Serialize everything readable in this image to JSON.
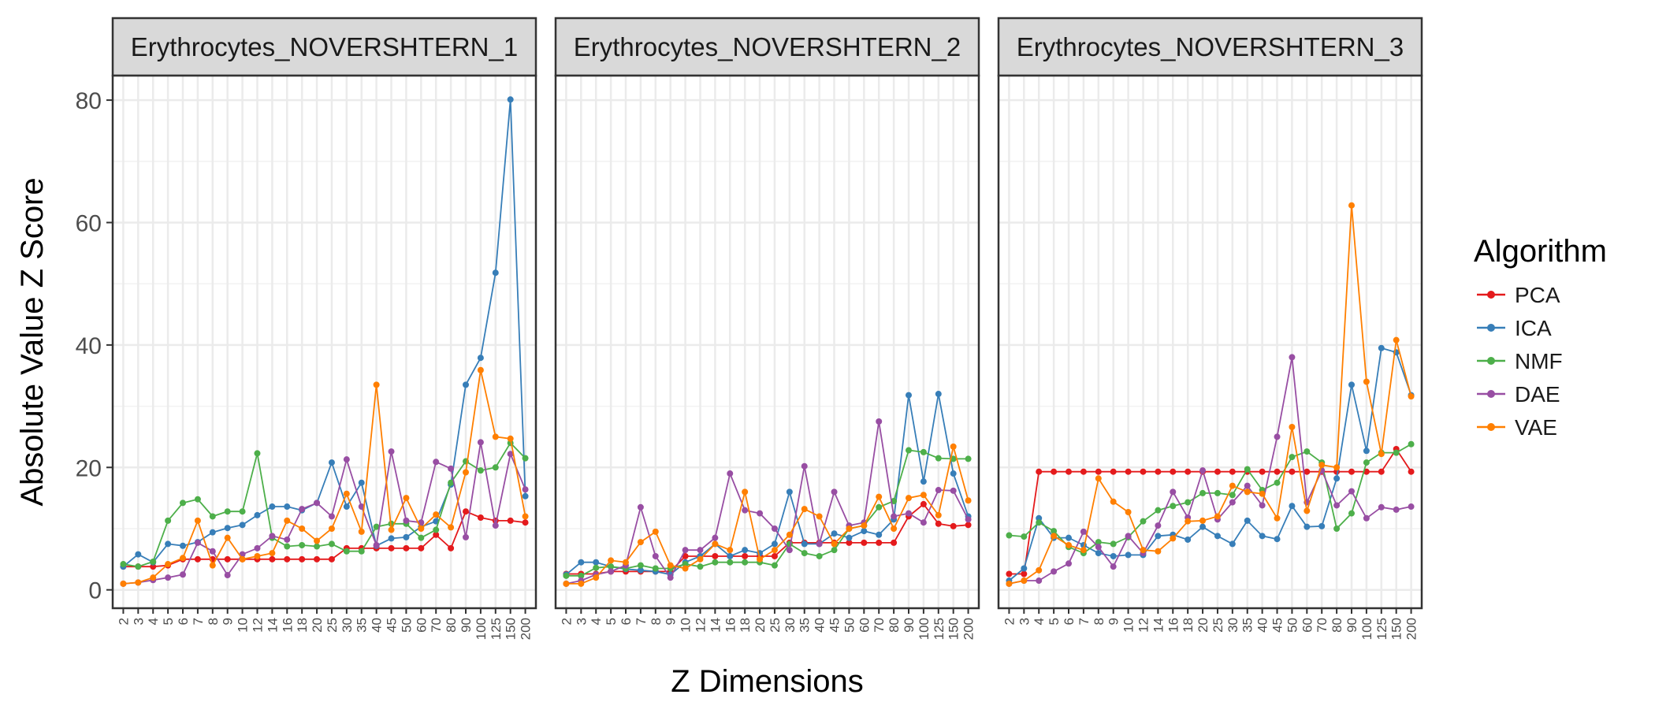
{
  "chart_data": {
    "type": "line",
    "ylabel": "Absolute Value Z Score",
    "xlabel": "Z Dimensions",
    "x": [
      "2",
      "3",
      "4",
      "5",
      "6",
      "7",
      "8",
      "9",
      "10",
      "12",
      "14",
      "16",
      "18",
      "20",
      "25",
      "30",
      "35",
      "40",
      "45",
      "50",
      "60",
      "70",
      "80",
      "90",
      "100",
      "125",
      "150",
      "200"
    ],
    "ylim": [
      -3,
      84
    ],
    "yticks": [
      0,
      20,
      40,
      60,
      80
    ],
    "grid": true,
    "legend_title": "Algorithm",
    "legend_position": "right",
    "series_colors": {
      "PCA": "#e41a1c",
      "ICA": "#377eb8",
      "NMF": "#4daf4a",
      "DAE": "#984ea3",
      "VAE": "#ff7f00"
    },
    "panels": [
      {
        "title": "Erythrocytes_NOVERSHTERN_1",
        "series": [
          {
            "name": "PCA",
            "values": [
              3.8,
              3.8,
              3.8,
              4.0,
              5.0,
              5.0,
              5.0,
              5.0,
              5.0,
              5.0,
              5.0,
              5.0,
              5.0,
              5.0,
              5.0,
              6.8,
              6.8,
              6.8,
              6.8,
              6.8,
              6.8,
              9.0,
              6.8,
              12.8,
              11.8,
              11.3,
              11.3,
              11.0
            ]
          },
          {
            "name": "ICA",
            "values": [
              3.8,
              5.8,
              4.5,
              7.5,
              7.2,
              7.8,
              9.4,
              10.1,
              10.6,
              12.2,
              13.6,
              13.6,
              13.0,
              14.2,
              20.8,
              13.6,
              17.5,
              7.2,
              8.4,
              8.6,
              10.3,
              11.2,
              17.2,
              33.5,
              37.9,
              51.8,
              80.1,
              15.3
            ]
          },
          {
            "name": "NMF",
            "values": [
              4.2,
              3.8,
              4.6,
              11.3,
              14.2,
              14.8,
              12.0,
              12.8,
              12.8,
              22.3,
              8.5,
              7.1,
              7.3,
              7.1,
              7.5,
              6.3,
              6.3,
              10.3,
              10.8,
              10.8,
              8.5,
              9.8,
              17.5,
              21.0,
              19.5,
              20.0,
              24.0,
              21.5
            ]
          },
          {
            "name": "DAE",
            "values": [
              1.0,
              1.2,
              1.6,
              2.0,
              2.5,
              7.7,
              6.3,
              2.4,
              5.8,
              6.8,
              8.8,
              8.2,
              13.2,
              14.2,
              12.0,
              21.3,
              13.6,
              7.3,
              22.6,
              11.3,
              11.0,
              20.9,
              19.8,
              8.6,
              24.1,
              10.5,
              22.2,
              16.4
            ]
          },
          {
            "name": "VAE",
            "values": [
              1.0,
              1.2,
              2.0,
              4.2,
              5.2,
              11.3,
              4.0,
              8.5,
              5.0,
              5.5,
              6.0,
              11.3,
              10.0,
              8.0,
              10.0,
              15.7,
              9.5,
              33.5,
              9.8,
              15.0,
              10.0,
              12.3,
              10.2,
              19.2,
              35.9,
              25.0,
              24.7,
              12.0
            ]
          }
        ]
      },
      {
        "title": "Erythrocytes_NOVERSHTERN_2",
        "series": [
          {
            "name": "PCA",
            "values": [
              2.6,
              2.6,
              2.6,
              3.0,
              3.0,
              3.0,
              3.0,
              3.0,
              5.5,
              5.5,
              5.5,
              5.5,
              5.5,
              5.5,
              5.5,
              7.7,
              7.7,
              7.7,
              7.7,
              7.7,
              7.7,
              7.7,
              7.7,
              12.0,
              14.0,
              10.8,
              10.4,
              10.6
            ]
          },
          {
            "name": "ICA",
            "values": [
              2.5,
              4.5,
              4.5,
              3.8,
              3.4,
              3.2,
              3.0,
              2.5,
              4.5,
              5.5,
              7.5,
              5.5,
              6.5,
              6.0,
              7.5,
              16.0,
              7.5,
              7.5,
              9.2,
              8.5,
              9.6,
              9.0,
              11.5,
              31.8,
              17.7,
              32.0,
              19.0,
              12.0
            ]
          },
          {
            "name": "NMF",
            "values": [
              2.3,
              2.3,
              3.6,
              3.8,
              3.5,
              4.0,
              3.5,
              3.5,
              4.2,
              3.8,
              4.5,
              4.5,
              4.5,
              4.5,
              4.0,
              7.5,
              6.0,
              5.5,
              6.5,
              10.0,
              10.5,
              13.5,
              14.5,
              22.8,
              22.5,
              21.5,
              21.4,
              21.4
            ]
          },
          {
            "name": "DAE",
            "values": [
              1.0,
              1.5,
              2.5,
              3.0,
              4.0,
              13.5,
              5.5,
              2.0,
              6.5,
              6.5,
              8.5,
              19.0,
              13.0,
              12.5,
              10.0,
              6.5,
              20.2,
              7.5,
              16.0,
              10.5,
              11.0,
              27.5,
              12.0,
              12.5,
              11.0,
              16.3,
              16.2,
              11.5
            ]
          },
          {
            "name": "VAE",
            "values": [
              1.0,
              1.0,
              2.0,
              4.8,
              4.5,
              7.8,
              9.5,
              4.0,
              3.5,
              5.0,
              7.5,
              6.5,
              16.0,
              5.0,
              6.5,
              9.0,
              13.2,
              12.0,
              7.5,
              10.0,
              10.5,
              15.2,
              10.0,
              15.0,
              15.5,
              12.2,
              23.4,
              14.6
            ]
          }
        ]
      },
      {
        "title": "Erythrocytes_NOVERSHTERN_3",
        "series": [
          {
            "name": "PCA",
            "values": [
              2.6,
              2.6,
              19.3,
              19.3,
              19.3,
              19.3,
              19.3,
              19.3,
              19.3,
              19.3,
              19.3,
              19.3,
              19.3,
              19.3,
              19.3,
              19.3,
              19.3,
              19.3,
              19.3,
              19.3,
              19.3,
              19.3,
              19.3,
              19.3,
              19.3,
              19.3,
              23.0,
              19.3
            ]
          },
          {
            "name": "ICA",
            "values": [
              1.5,
              3.5,
              11.7,
              8.5,
              8.5,
              7.3,
              6.0,
              5.5,
              5.7,
              5.7,
              8.8,
              9.0,
              8.2,
              10.3,
              8.8,
              7.5,
              11.3,
              8.8,
              8.3,
              13.7,
              10.3,
              10.4,
              18.2,
              33.5,
              22.7,
              39.5,
              38.8,
              31.8
            ]
          },
          {
            "name": "NMF",
            "values": [
              8.9,
              8.7,
              11.0,
              9.6,
              7.0,
              6.0,
              7.8,
              7.5,
              8.6,
              11.2,
              13.0,
              13.7,
              14.3,
              15.8,
              15.8,
              15.5,
              19.7,
              16.3,
              17.5,
              21.7,
              22.6,
              20.8,
              10.0,
              12.5,
              20.8,
              22.4,
              22.4,
              23.8
            ]
          },
          {
            "name": "DAE",
            "values": [
              1.0,
              1.5,
              1.5,
              3.0,
              4.3,
              9.5,
              7.0,
              3.8,
              8.8,
              6.0,
              10.5,
              16.0,
              11.8,
              19.5,
              11.5,
              14.3,
              17.0,
              13.8,
              25.0,
              38.0,
              14.3,
              19.5,
              13.8,
              16.1,
              11.7,
              13.5,
              13.1,
              13.6
            ]
          },
          {
            "name": "VAE",
            "values": [
              1.0,
              1.5,
              3.2,
              8.8,
              7.3,
              6.5,
              18.2,
              14.4,
              12.7,
              6.5,
              6.3,
              8.4,
              11.2,
              11.3,
              12.0,
              17.0,
              16.0,
              15.7,
              11.7,
              26.6,
              12.9,
              20.4,
              20.0,
              62.8,
              34.0,
              22.2,
              40.8,
              31.6
            ]
          }
        ]
      }
    ]
  }
}
